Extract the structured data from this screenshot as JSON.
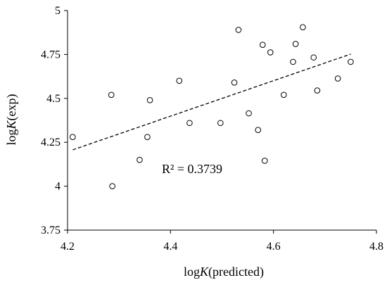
{
  "chart_data": {
    "type": "scatter",
    "title": "",
    "xlabel": {
      "prefix": "log",
      "italic": "K",
      "suffix": "(predicted)"
    },
    "ylabel": {
      "prefix": "log",
      "italic": "K",
      "suffix": "(exp)"
    },
    "xlim": [
      4.2,
      4.8
    ],
    "ylim": [
      3.75,
      5
    ],
    "x_ticks": [
      4.2,
      4.4,
      4.6,
      4.8
    ],
    "x_tick_labels": [
      "4.2",
      "4.4",
      "4.6",
      "4.8"
    ],
    "y_ticks": [
      3.75,
      4,
      4.25,
      4.5,
      4.75,
      5
    ],
    "y_tick_labels": [
      "3.75",
      "4",
      "4.25",
      "4.5",
      "4.75",
      "5"
    ],
    "grid": false,
    "legend": "none",
    "marker": "open-circle",
    "series": [
      {
        "points": [
          [
            4.21,
            4.28
          ],
          [
            4.285,
            4.52
          ],
          [
            4.287,
            4.0
          ],
          [
            4.34,
            4.15
          ],
          [
            4.355,
            4.28
          ],
          [
            4.36,
            4.49
          ],
          [
            4.417,
            4.6
          ],
          [
            4.437,
            4.36
          ],
          [
            4.497,
            4.36
          ],
          [
            4.524,
            4.59
          ],
          [
            4.532,
            4.89
          ],
          [
            4.552,
            4.415
          ],
          [
            4.57,
            4.32
          ],
          [
            4.579,
            4.805
          ],
          [
            4.583,
            4.145
          ],
          [
            4.594,
            4.762
          ],
          [
            4.62,
            4.52
          ],
          [
            4.638,
            4.708
          ],
          [
            4.643,
            4.81
          ],
          [
            4.657,
            4.905
          ],
          [
            4.678,
            4.733
          ],
          [
            4.685,
            4.545
          ],
          [
            4.725,
            4.613
          ],
          [
            4.75,
            4.708
          ]
        ]
      }
    ],
    "trendline": {
      "style": "dashed",
      "x": [
        4.21,
        4.75
      ],
      "y": [
        4.207,
        4.752
      ]
    },
    "annotation": "R² = 0.3739"
  }
}
